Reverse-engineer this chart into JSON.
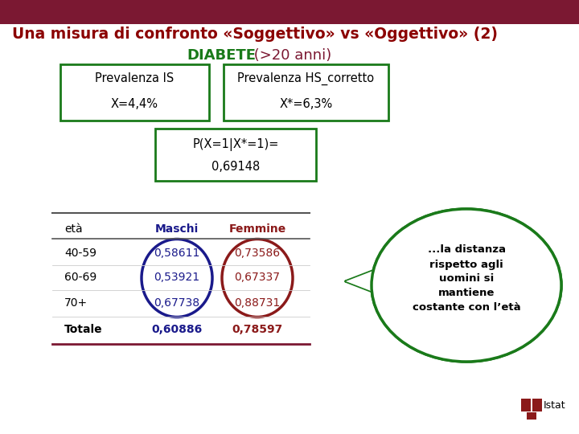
{
  "title": "Una misura di confronto «Soggettivo» vs «Oggettivo» (2)",
  "title_color": "#8B0000",
  "background_color": "#FFFFFF",
  "header_bar_color": "#7B1832",
  "diabete_label": "DIABETE",
  "diabete_color": "#1a7a1a",
  "anni_label": " (>20 anni)",
  "anni_color": "#7B1832",
  "box1_title": "Prevalenza IS",
  "box1_value": "X=4,4%",
  "box2_title": "Prevalenza HS_corretto",
  "box2_value": "X*=6,3%",
  "box_border_color": "#1a7a1a",
  "prob_line1": "P(X=1|X*=1)=",
  "prob_line2": "0,69148",
  "table_headers": [
    "età",
    "Maschi",
    "Femmine"
  ],
  "maschi_color": "#1a1a8B",
  "femmine_color": "#8B1a1a",
  "table_rows": [
    [
      "40-59",
      "0,58611",
      "0,73586"
    ],
    [
      "60-69",
      "0,53921",
      "0,67337"
    ],
    [
      "70+",
      "0,67738",
      "0,88731"
    ],
    [
      "Totale",
      "0,60886",
      "0,78597"
    ]
  ],
  "bubble_text": "...la distanza\nrispetto agli\nuomini si\nmantiene\ncostante con l’età",
  "bubble_color": "#1a7a1a",
  "oval_maschi_color": "#1a1a8B",
  "oval_femmine_color": "#8B1a1a",
  "istat_color": "#8B1a1a"
}
